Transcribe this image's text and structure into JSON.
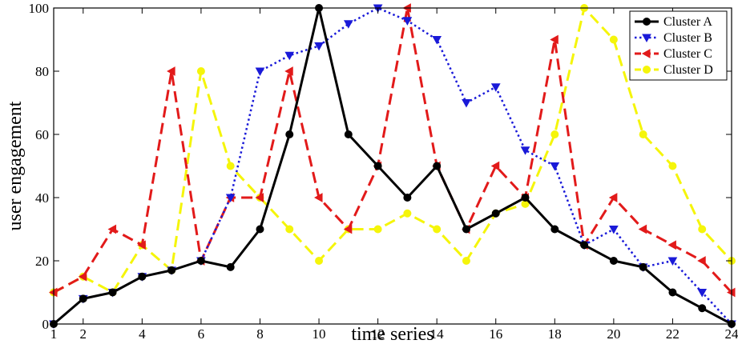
{
  "chart_data": {
    "type": "line",
    "title": "",
    "xlabel": "time series",
    "ylabel": "user engagement",
    "xlim": [
      1,
      24
    ],
    "ylim": [
      0,
      100
    ],
    "xticks": [
      2,
      4,
      6,
      8,
      10,
      12,
      14,
      16,
      18,
      20,
      22,
      24
    ],
    "yticks": [
      0,
      20,
      40,
      60,
      80,
      100
    ],
    "x_origin_label": "1",
    "grid": false,
    "legend_position": "top-right",
    "x": [
      1,
      2,
      3,
      4,
      5,
      6,
      7,
      8,
      9,
      10,
      11,
      12,
      13,
      14,
      15,
      16,
      17,
      18,
      19,
      20,
      21,
      22,
      23,
      24
    ],
    "series": [
      {
        "name": "Cluster A",
        "color": "#000000",
        "line_style": "solid",
        "marker": "circle",
        "values": [
          0,
          8,
          10,
          15,
          17,
          20,
          18,
          30,
          60,
          100,
          60,
          50,
          40,
          50,
          30,
          35,
          40,
          30,
          25,
          20,
          18,
          10,
          5,
          0
        ]
      },
      {
        "name": "Cluster B",
        "color": "#1a1ad8",
        "line_style": "dotted",
        "marker": "triangle-down",
        "values": [
          0,
          8,
          10,
          15,
          17,
          20,
          40,
          80,
          85,
          88,
          95,
          100,
          96,
          90,
          70,
          75,
          55,
          50,
          25,
          30,
          18,
          20,
          10,
          0
        ]
      },
      {
        "name": "Cluster C",
        "color": "#e21a1a",
        "line_style": "dashed",
        "marker": "triangle-left",
        "values": [
          10,
          15,
          30,
          25,
          80,
          20,
          40,
          40,
          80,
          40,
          30,
          50,
          100,
          50,
          30,
          50,
          40,
          90,
          25,
          40,
          30,
          25,
          20,
          10
        ]
      },
      {
        "name": "Cluster D",
        "color": "#f5f50a",
        "line_style": "dashed",
        "marker": "circle",
        "values": [
          10,
          15,
          10,
          25,
          17,
          80,
          50,
          40,
          30,
          20,
          30,
          30,
          35,
          30,
          20,
          35,
          38,
          60,
          100,
          90,
          60,
          50,
          30,
          20
        ]
      }
    ]
  }
}
